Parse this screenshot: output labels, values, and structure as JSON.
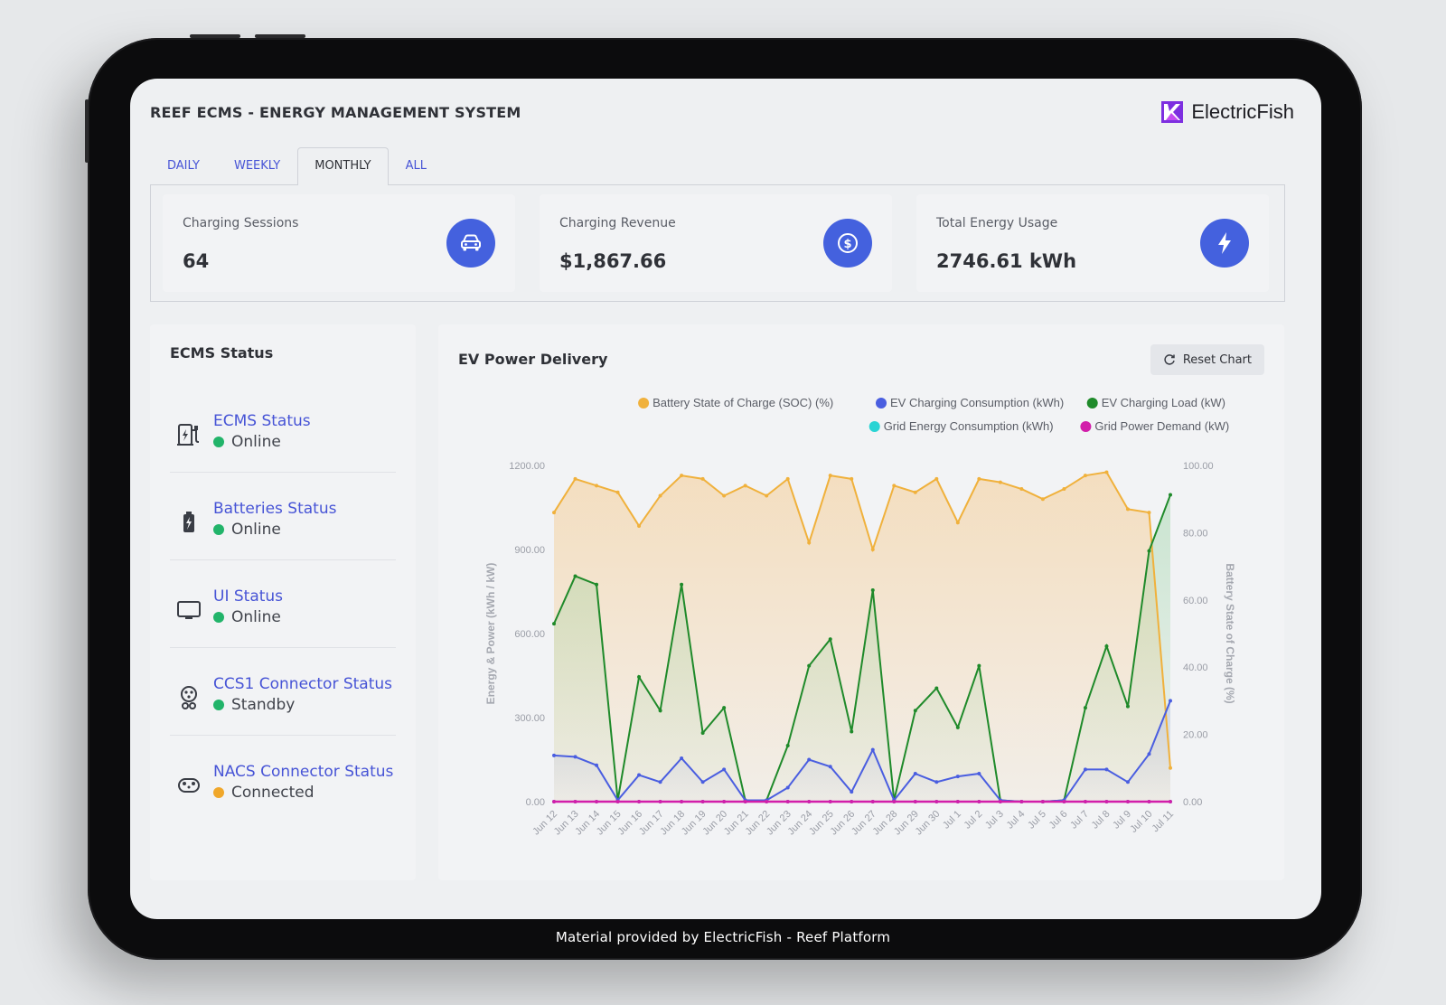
{
  "app": {
    "title": "REEF ECMS - ENERGY MANAGEMENT SYSTEM",
    "brand": "ElectricFish"
  },
  "caption": "Material provided by ElectricFish - Reef Platform",
  "tabs": [
    {
      "label": "DAILY",
      "active": false
    },
    {
      "label": "WEEKLY",
      "active": false
    },
    {
      "label": "MONTHLY",
      "active": true
    },
    {
      "label": "ALL",
      "active": false
    }
  ],
  "kpis": [
    {
      "label": "Charging Sessions",
      "value": "64",
      "icon": "car-icon"
    },
    {
      "label": "Charging Revenue",
      "value": "$1,867.66",
      "icon": "dollar-icon"
    },
    {
      "label": "Total Energy Usage",
      "value": "2746.61 kWh",
      "icon": "lightning-icon"
    }
  ],
  "status": {
    "title": "ECMS Status",
    "items": [
      {
        "name": "ECMS Status",
        "state": "Online",
        "color": "#22b46a",
        "icon": "ev-charger-icon"
      },
      {
        "name": "Batteries Status",
        "state": "Online",
        "color": "#22b46a",
        "icon": "battery-icon"
      },
      {
        "name": "UI Status",
        "state": "Online",
        "color": "#22b46a",
        "icon": "monitor-icon"
      },
      {
        "name": "CCS1 Connector Status",
        "state": "Standby",
        "color": "#22b46a",
        "icon": "ccs1-connector-icon"
      },
      {
        "name": "NACS Connector Status",
        "state": "Connected",
        "color": "#f0a72a",
        "icon": "nacs-connector-icon"
      }
    ]
  },
  "chart_panel": {
    "title": "EV Power Delivery",
    "reset_label": "Reset Chart"
  },
  "chart_data": {
    "type": "line",
    "categories": [
      "Jun 12",
      "Jun 13",
      "Jun 14",
      "Jun 15",
      "Jun 16",
      "Jun 17",
      "Jun 18",
      "Jun 19",
      "Jun 20",
      "Jun 21",
      "Jun 22",
      "Jun 23",
      "Jun 24",
      "Jun 25",
      "Jun 26",
      "Jun 27",
      "Jun 28",
      "Jun 29",
      "Jun 30",
      "Jul 1",
      "Jul 2",
      "Jul 3",
      "Jul 4",
      "Jul 5",
      "Jul 6",
      "Jul 7",
      "Jul 8",
      "Jul 9",
      "Jul 10",
      "Jul 11"
    ],
    "ylabel": "Energy & Power (kWh / kW)",
    "y2label": "Battery State of Charge (%)",
    "ylim": [
      0,
      1200
    ],
    "y2lim": [
      0,
      100
    ],
    "yticks": [
      "0.00",
      "300.00",
      "600.00",
      "900.00",
      "1200.00"
    ],
    "y2ticks": [
      "0.00",
      "20.00",
      "40.00",
      "60.00",
      "80.00",
      "100.00"
    ],
    "legend_position": "top-right",
    "series": [
      {
        "name": "Battery State of Charge (SOC) (%)",
        "color": "#f0b13c",
        "axis": "right",
        "values": [
          86,
          96,
          94,
          92,
          82,
          91,
          97,
          96,
          91,
          94,
          91,
          96,
          77,
          97,
          96,
          75,
          94,
          92,
          96,
          83,
          96,
          95,
          93,
          90,
          93,
          97,
          98,
          87,
          86,
          10
        ]
      },
      {
        "name": "EV Charging Consumption (kWh)",
        "color": "#4a5ee0",
        "axis": "left",
        "values": [
          165,
          160,
          130,
          5,
          95,
          70,
          155,
          70,
          115,
          5,
          5,
          50,
          150,
          125,
          35,
          185,
          5,
          100,
          70,
          90,
          100,
          5,
          0,
          0,
          5,
          115,
          115,
          70,
          170,
          360
        ]
      },
      {
        "name": "EV Charging Load (kW)",
        "color": "#1f8a2a",
        "axis": "left",
        "values": [
          635,
          805,
          775,
          5,
          445,
          325,
          775,
          245,
          335,
          5,
          5,
          200,
          485,
          580,
          250,
          755,
          5,
          325,
          405,
          265,
          485,
          5,
          0,
          0,
          5,
          335,
          555,
          340,
          895,
          1095
        ]
      },
      {
        "name": "Grid Energy Consumption (kWh)",
        "color": "#2ad4d4",
        "axis": "left",
        "values": [
          0,
          0,
          0,
          0,
          0,
          0,
          0,
          0,
          0,
          0,
          0,
          0,
          0,
          0,
          0,
          0,
          0,
          0,
          0,
          0,
          0,
          0,
          0,
          0,
          0,
          0,
          0,
          0,
          0,
          0
        ]
      },
      {
        "name": "Grid Power Demand (kW)",
        "color": "#d21eaa",
        "axis": "left",
        "values": [
          0,
          0,
          0,
          0,
          0,
          0,
          0,
          0,
          0,
          0,
          0,
          0,
          0,
          0,
          0,
          0,
          0,
          0,
          0,
          0,
          0,
          0,
          0,
          0,
          0,
          0,
          0,
          0,
          0,
          0
        ]
      }
    ]
  }
}
